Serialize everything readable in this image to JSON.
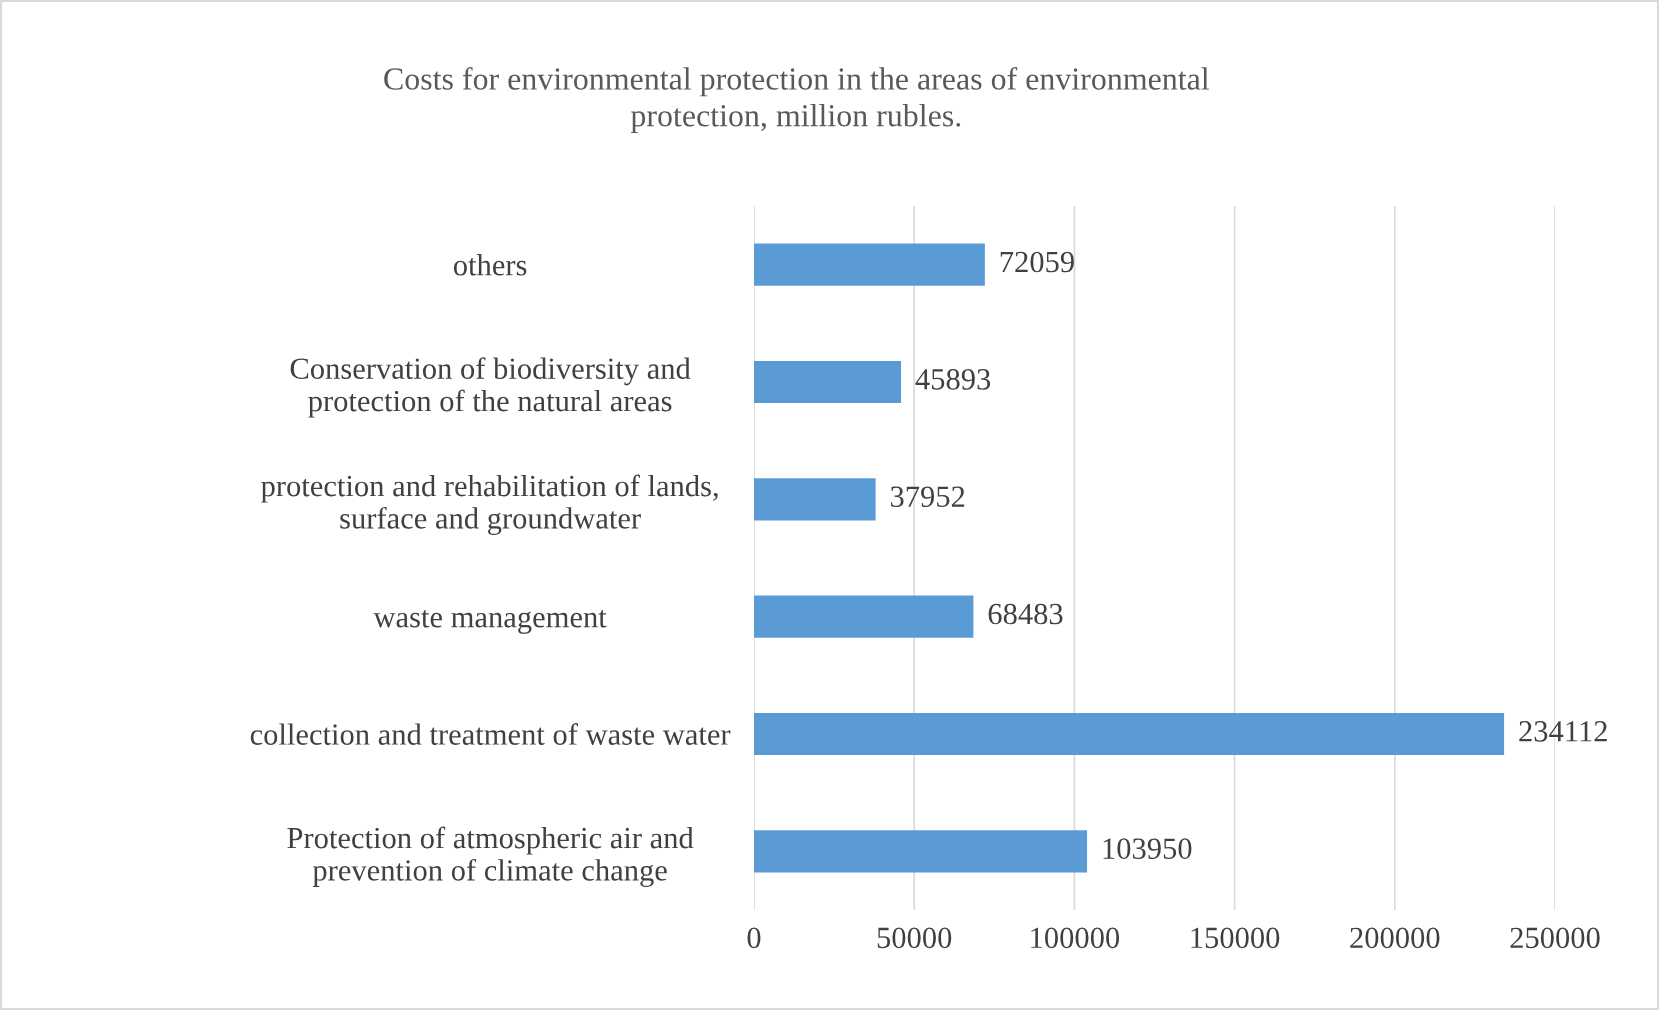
{
  "chart_data": {
    "type": "bar",
    "orientation": "horizontal",
    "title": "Costs for environmental protection in the areas of environmental\nprotection, million rubles.",
    "categories": [
      "others",
      "Conservation of biodiversity and\nprotection of the natural areas",
      "protection and rehabilitation of lands,\nsurface and groundwater",
      "waste management",
      "collection and treatment of waste water",
      "Protection of atmospheric air and\nprevention of climate change"
    ],
    "values": [
      72059,
      45893,
      37952,
      68483,
      234112,
      103950
    ],
    "color": "#5b9bd5",
    "xlim": [
      0,
      250000
    ],
    "xticks": [
      0,
      50000,
      100000,
      150000,
      200000,
      250000
    ],
    "grid": "x",
    "data_labels": true
  }
}
